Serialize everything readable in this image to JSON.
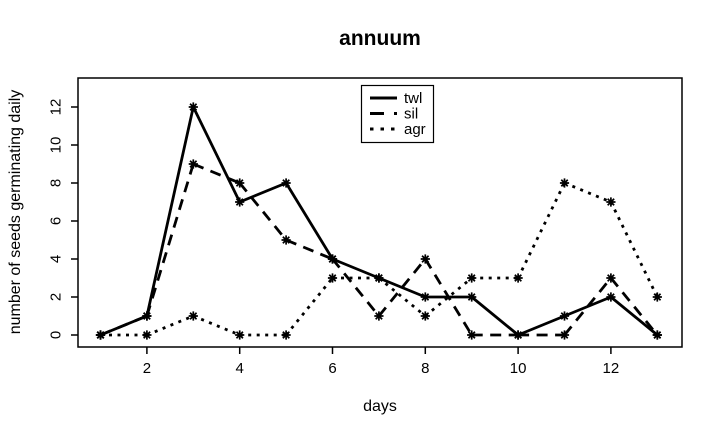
{
  "chart_data": {
    "type": "line",
    "title": "annuum",
    "xlabel": "days",
    "ylabel": "number of seeds germinating daily",
    "x": [
      1,
      2,
      3,
      4,
      5,
      6,
      7,
      8,
      9,
      10,
      11,
      12,
      13
    ],
    "series": [
      {
        "name": "twl",
        "style": "solid",
        "values": [
          0,
          1,
          12,
          7,
          8,
          4,
          3,
          2,
          2,
          0,
          1,
          2,
          0
        ]
      },
      {
        "name": "sil",
        "style": "dashed",
        "values": [
          0,
          1,
          9,
          8,
          5,
          4,
          1,
          4,
          0,
          0,
          0,
          3,
          0
        ]
      },
      {
        "name": "agr",
        "style": "dotted",
        "values": [
          0,
          0,
          1,
          0,
          0,
          3,
          3,
          1,
          3,
          3,
          8,
          7,
          2
        ]
      }
    ],
    "xticks": [
      2,
      4,
      6,
      8,
      10,
      12
    ],
    "yticks": [
      0,
      2,
      4,
      6,
      8,
      10,
      12
    ],
    "xlim": [
      1,
      13
    ],
    "ylim": [
      0,
      12
    ],
    "marker": "asterisk",
    "line_color": "#000000",
    "background": "#ffffff",
    "grid": false,
    "legend": {
      "position": "top-center",
      "entries": [
        {
          "label": "twl",
          "style": "solid"
        },
        {
          "label": "sil",
          "style": "dashed"
        },
        {
          "label": "agr",
          "style": "dotted"
        }
      ]
    }
  }
}
